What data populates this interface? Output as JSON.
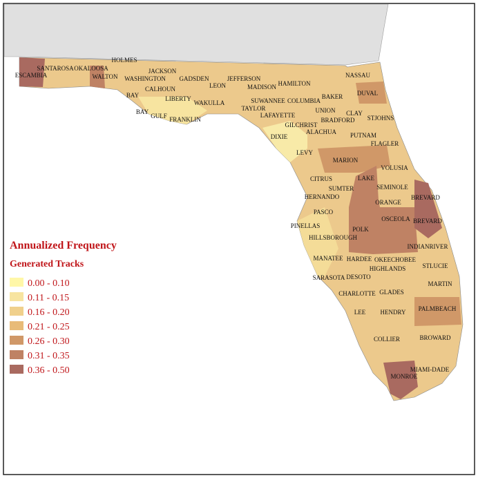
{
  "legend": {
    "title": "Annualized Frequency",
    "subtitle": "Generated Tracks",
    "items": [
      {
        "label": "0.00 - 0.10",
        "color": "#fff7a8"
      },
      {
        "label": "0.11 - 0.15",
        "color": "#f7e4a0"
      },
      {
        "label": "0.16 - 0.20",
        "color": "#f0d08c"
      },
      {
        "label": "0.21 - 0.25",
        "color": "#e8bb78"
      },
      {
        "label": "0.26 - 0.30",
        "color": "#d09868"
      },
      {
        "label": "0.31 - 0.35",
        "color": "#bf8264"
      },
      {
        "label": "0.36 - 0.50",
        "color": "#a96a60"
      }
    ]
  },
  "counties": [
    "ESCAMBIA",
    "SANTAROSA",
    "OKALOOSA",
    "HOLMES",
    "WALTON",
    "WASHINGTON",
    "JACKSON",
    "CALHOUN",
    "GADSDEN",
    "LEON",
    "JEFFERSON",
    "MADISON",
    "HAMILTON",
    "BAY",
    "BAY",
    "GULF",
    "LIBERTY",
    "WAKULLA",
    "FRANKLIN",
    "SUWANNEE",
    "COLUMBIA",
    "BAKER",
    "TAYLOR",
    "UNION",
    "NASSAU",
    "DUVAL",
    "CLAY",
    "STJOHNS",
    "LAFAYETTE",
    "BRADFORD",
    "GILCHRIST",
    "ALACHUA",
    "DIXIE",
    "PUTNAM",
    "FLAGLER",
    "LEVY",
    "MARION",
    "VOLUSIA",
    "LAKE",
    "CITRUS",
    "SEMINOLE",
    "SUMTER",
    "HERNANDO",
    "ORANGE",
    "BREVARD",
    "PASCO",
    "OSCEOLA",
    "BREVARD",
    "PINELLAS",
    "POLK",
    "HILLSBOROUGH",
    "INDIANRIVER",
    "MANATEE",
    "HARDEE",
    "OKEECHOBEE",
    "STLUCIE",
    "HIGHLANDS",
    "SARASOTA",
    "DESOTO",
    "MARTIN",
    "CHARLOTTE",
    "GLADES",
    "PALMBEACH",
    "LEE",
    "HENDRY",
    "BROWARD",
    "COLLIER",
    "MIAMI-DADE",
    "MONROE"
  ]
}
